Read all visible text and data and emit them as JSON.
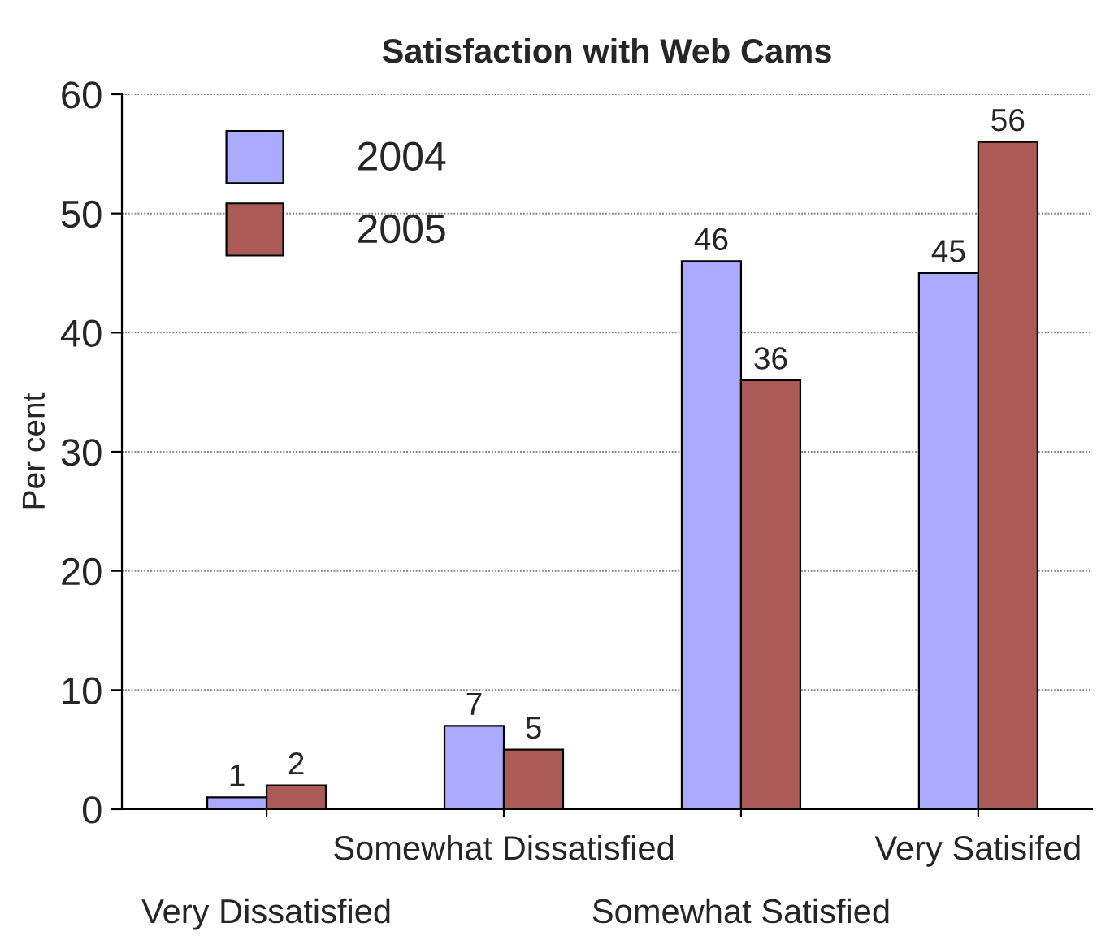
{
  "chart_data": {
    "type": "bar",
    "title": "Satisfaction with Web Cams",
    "ylabel": "Per cent",
    "categories": [
      "Very Dissatisfied",
      "Somewhat Dissatisfied",
      "Somewhat Satisfied",
      "Very Satisifed"
    ],
    "series": [
      {
        "name": "2004",
        "color": "#aaaaff",
        "values": [
          1,
          7,
          46,
          45
        ]
      },
      {
        "name": "2005",
        "color": "#ab5a56",
        "values": [
          2,
          5,
          36,
          56
        ]
      }
    ],
    "ylim": [
      0,
      60
    ],
    "yticks": [
      0,
      10,
      20,
      30,
      40,
      50,
      60
    ],
    "grid": "y",
    "legend": "top left",
    "data_labels": true
  }
}
